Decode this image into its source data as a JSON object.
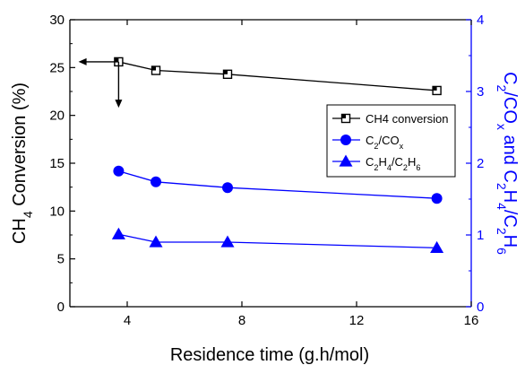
{
  "chart_data": {
    "type": "line",
    "title": "",
    "xlabel": "Residence time (g.h/mol)",
    "ylabel": {
      "base": "CH",
      "sub": "4",
      "rest": " Conversion (%)"
    },
    "y2label": {
      "parts": [
        {
          "t": "C",
          "s": false
        },
        {
          "t": "2",
          "s": true
        },
        {
          "t": "/CO",
          "s": false
        },
        {
          "t": "x",
          "s": true
        },
        {
          "t": " and C",
          "s": false
        },
        {
          "t": "2",
          "s": true
        },
        {
          "t": "H",
          "s": false
        },
        {
          "t": "4",
          "s": true
        },
        {
          "t": "/C",
          "s": false
        },
        {
          "t": "2",
          "s": true
        },
        {
          "t": "H",
          "s": false
        },
        {
          "t": "6",
          "s": true
        }
      ]
    },
    "xlim": [
      2,
      16
    ],
    "ylim": [
      0,
      30
    ],
    "y2lim": [
      0,
      4
    ],
    "xticks": [
      "4",
      "8",
      "12",
      "16"
    ],
    "xtick_values": [
      4,
      8,
      12,
      16
    ],
    "yticks": [
      "0",
      "5",
      "10",
      "15",
      "20",
      "25",
      "30"
    ],
    "ytick_values": [
      0,
      5,
      10,
      15,
      20,
      25,
      30
    ],
    "y2ticks": [
      "0",
      "1",
      "2",
      "3",
      "4"
    ],
    "y2tick_values": [
      0,
      1,
      2,
      3,
      4
    ],
    "grid": false,
    "legend_position": "right",
    "left_axis_color": "#000000",
    "right_axis_color": "#0000ff",
    "series": [
      {
        "name": "CH4 conversion",
        "axis": "left",
        "color": "#000000",
        "marker": "square-half",
        "x": [
          3.7,
          5.0,
          7.5,
          14.8
        ],
        "y": [
          25.6,
          24.7,
          24.3,
          22.6
        ]
      },
      {
        "name": {
          "base": "C",
          "parts": [
            {
              "t": "2",
              "s": true
            },
            {
              "t": "/CO",
              "s": false
            },
            {
              "t": "x",
              "s": true
            }
          ]
        },
        "axis": "right",
        "color": "#0000ff",
        "marker": "circle",
        "x": [
          3.7,
          5.0,
          7.5,
          14.8
        ],
        "y": [
          1.89,
          1.74,
          1.66,
          1.51
        ]
      },
      {
        "name": {
          "base": "C",
          "parts": [
            {
              "t": "2",
              "s": true
            },
            {
              "t": "H",
              "s": false
            },
            {
              "t": "4",
              "s": true
            },
            {
              "t": "/C",
              "s": false
            },
            {
              "t": "2",
              "s": true
            },
            {
              "t": "H",
              "s": false
            },
            {
              "t": "6",
              "s": true
            }
          ]
        },
        "axis": "right",
        "color": "#0000ff",
        "marker": "triangle",
        "x": [
          3.7,
          5.0,
          7.5,
          14.8
        ],
        "y": [
          1.01,
          0.9,
          0.9,
          0.82
        ]
      }
    ],
    "annotations": [
      {
        "type": "arrow-left",
        "from_x": 3.7,
        "to_x": 2.3,
        "at_y": 25.6,
        "axis": "left"
      },
      {
        "type": "arrow-down",
        "at_x": 3.7,
        "from_y": 25.6,
        "to_y": 20.8,
        "axis": "left"
      }
    ]
  }
}
